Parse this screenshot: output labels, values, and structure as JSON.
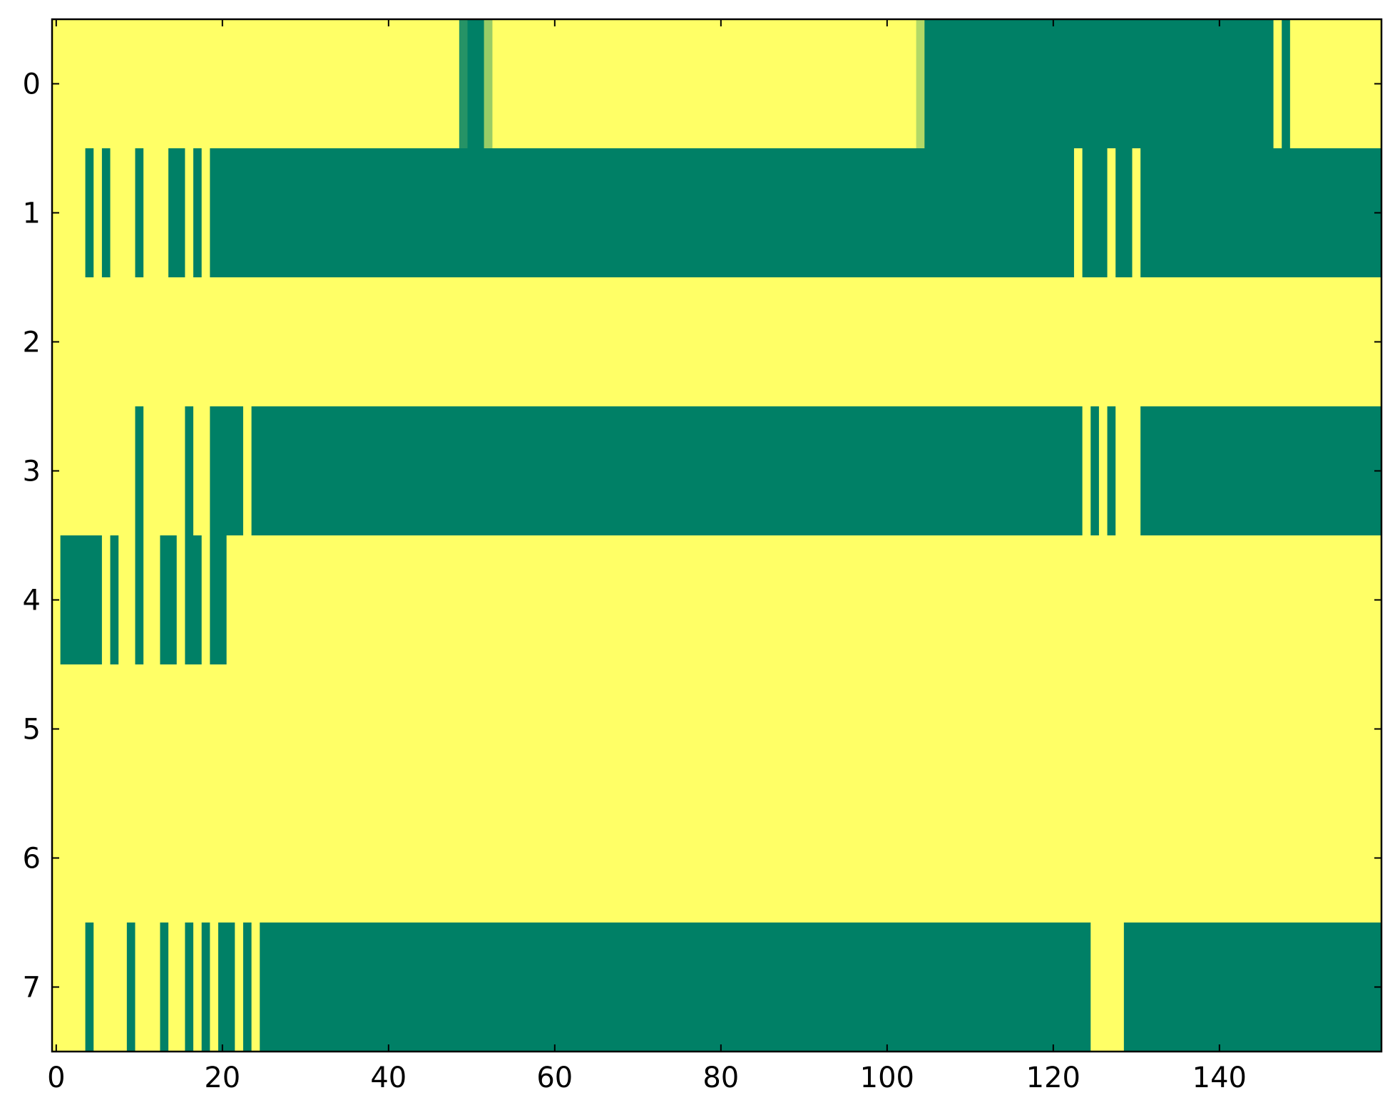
{
  "chart_data": {
    "type": "heatmap",
    "title": "",
    "xlabel": "",
    "ylabel": "",
    "xlim": [
      -0.5,
      159.5
    ],
    "ylim": [
      -0.5,
      7.5
    ],
    "y_inverted": true,
    "grid": false,
    "legend": "none",
    "n_cols": 160,
    "x_ticks": [
      0,
      20,
      40,
      60,
      80,
      100,
      120,
      140
    ],
    "x_tick_labels": [
      "0",
      "20",
      "40",
      "60",
      "80",
      "100",
      "120",
      "140"
    ],
    "y_ticks": [
      0,
      1,
      2,
      3,
      4,
      5,
      6,
      7
    ],
    "y_tick_labels": [
      "0",
      "1",
      "2",
      "3",
      "4",
      "5",
      "6",
      "7"
    ],
    "colormap": "summer",
    "colors": {
      "low": "#008066",
      "high": "#ffff66",
      "frame": "#000000"
    },
    "value_range": [
      0,
      1
    ],
    "default_value": 1,
    "rows": [
      {
        "row": 0,
        "segments": [
          {
            "start": 49,
            "end": 49,
            "value": 0.15
          },
          {
            "start": 50,
            "end": 51,
            "value": 0
          },
          {
            "start": 52,
            "end": 52,
            "value": 0.6
          },
          {
            "start": 104,
            "end": 104,
            "value": 0.7
          },
          {
            "start": 105,
            "end": 146,
            "value": 0
          },
          {
            "start": 148,
            "end": 148,
            "value": 0
          }
        ]
      },
      {
        "row": 1,
        "segments": [
          {
            "start": 4,
            "end": 4,
            "value": 0
          },
          {
            "start": 6,
            "end": 6,
            "value": 0
          },
          {
            "start": 10,
            "end": 10,
            "value": 0
          },
          {
            "start": 14,
            "end": 15,
            "value": 0
          },
          {
            "start": 17,
            "end": 17,
            "value": 0
          },
          {
            "start": 19,
            "end": 122,
            "value": 0
          },
          {
            "start": 124,
            "end": 126,
            "value": 0
          },
          {
            "start": 128,
            "end": 129,
            "value": 0
          },
          {
            "start": 131,
            "end": 159,
            "value": 0
          }
        ]
      },
      {
        "row": 2,
        "segments": []
      },
      {
        "row": 3,
        "segments": [
          {
            "start": 10,
            "end": 10,
            "value": 0
          },
          {
            "start": 16,
            "end": 16,
            "value": 0
          },
          {
            "start": 19,
            "end": 22,
            "value": 0
          },
          {
            "start": 24,
            "end": 123,
            "value": 0
          },
          {
            "start": 125,
            "end": 125,
            "value": 0
          },
          {
            "start": 127,
            "end": 127,
            "value": 0
          },
          {
            "start": 131,
            "end": 159,
            "value": 0
          }
        ]
      },
      {
        "row": 4,
        "segments": [
          {
            "start": 1,
            "end": 5,
            "value": 0
          },
          {
            "start": 7,
            "end": 7,
            "value": 0
          },
          {
            "start": 10,
            "end": 10,
            "value": 0
          },
          {
            "start": 13,
            "end": 14,
            "value": 0
          },
          {
            "start": 16,
            "end": 17,
            "value": 0
          },
          {
            "start": 19,
            "end": 20,
            "value": 0
          }
        ]
      },
      {
        "row": 5,
        "segments": []
      },
      {
        "row": 6,
        "segments": []
      },
      {
        "row": 7,
        "segments": [
          {
            "start": 4,
            "end": 4,
            "value": 0
          },
          {
            "start": 9,
            "end": 9,
            "value": 0
          },
          {
            "start": 13,
            "end": 13,
            "value": 0
          },
          {
            "start": 16,
            "end": 16,
            "value": 0
          },
          {
            "start": 18,
            "end": 18,
            "value": 0
          },
          {
            "start": 20,
            "end": 21,
            "value": 0
          },
          {
            "start": 23,
            "end": 23,
            "value": 0
          },
          {
            "start": 25,
            "end": 124,
            "value": 0
          },
          {
            "start": 129,
            "end": 159,
            "value": 0
          }
        ]
      }
    ]
  }
}
